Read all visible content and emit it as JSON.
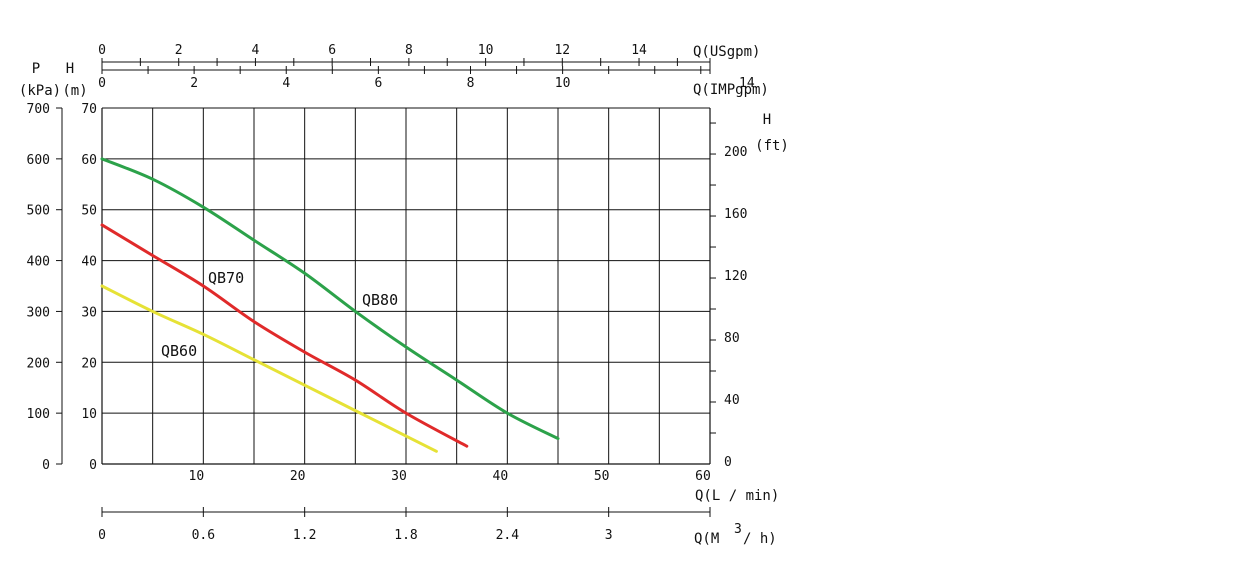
{
  "chart_data": {
    "type": "line",
    "title": "",
    "xlim": [
      0,
      60
    ],
    "ylim": [
      0,
      70
    ],
    "grid": true,
    "axes": {
      "bottom_primary": {
        "label": "Q(L / min)",
        "ticks": [
          10,
          20,
          30,
          40,
          50,
          60
        ],
        "range": [
          0,
          60
        ]
      },
      "bottom_secondary": {
        "label": "Q(M",
        "label_sup": "3",
        "label_suffix": "/ h)",
        "ticks": [
          "0",
          "0.6",
          "1.2",
          "1.8",
          "2.4",
          "3"
        ],
        "range": [
          0,
          3.6
        ]
      },
      "top_usgpm": {
        "label": "Q(USgpm)",
        "ticks": [
          "0",
          "2",
          "4",
          "6",
          "8",
          "10",
          "12",
          "14"
        ],
        "range": [
          0,
          15.85
        ]
      },
      "top_impgpm": {
        "label": "Q(IMPgpm)",
        "ticks": [
          "0",
          "2",
          "4",
          "6",
          "8",
          "10",
          "14"
        ],
        "range": [
          0,
          13.2
        ]
      },
      "left_head": {
        "label_top": "H",
        "label_bottom": "(m)",
        "ticks": [
          "0",
          "10",
          "20",
          "30",
          "40",
          "50",
          "60",
          "70"
        ],
        "range": [
          0,
          70
        ]
      },
      "left_pressure": {
        "label_top": "P",
        "label_bottom": "(kPa)",
        "ticks": [
          "0",
          "100",
          "200",
          "300",
          "400",
          "500",
          "600",
          "700"
        ],
        "range": [
          0,
          700
        ]
      },
      "right_ft": {
        "label_top": "H",
        "label_bottom": "(ft)",
        "ticks": [
          "0",
          "40",
          "80",
          "120",
          "160",
          "200"
        ],
        "range": [
          0,
          229.7
        ]
      }
    },
    "series": [
      {
        "name": "QB80",
        "color": "#2ca24a",
        "x": [
          0,
          5,
          10,
          15,
          20,
          25,
          30,
          35,
          40,
          45
        ],
        "y": [
          60,
          56,
          50.5,
          44,
          37.5,
          30,
          23,
          16.5,
          10,
          5
        ]
      },
      {
        "name": "QB70",
        "color": "#e02a2a",
        "x": [
          0,
          5,
          10,
          15,
          20,
          25,
          30,
          36
        ],
        "y": [
          47,
          41,
          35,
          28,
          22,
          16.5,
          10,
          3.5
        ]
      },
      {
        "name": "QB60",
        "color": "#e6e236",
        "x": [
          0,
          5,
          10,
          15,
          20,
          25,
          30,
          33
        ],
        "y": [
          35,
          30,
          25.5,
          20.5,
          15.5,
          10.5,
          5.5,
          2.5
        ]
      }
    ]
  }
}
